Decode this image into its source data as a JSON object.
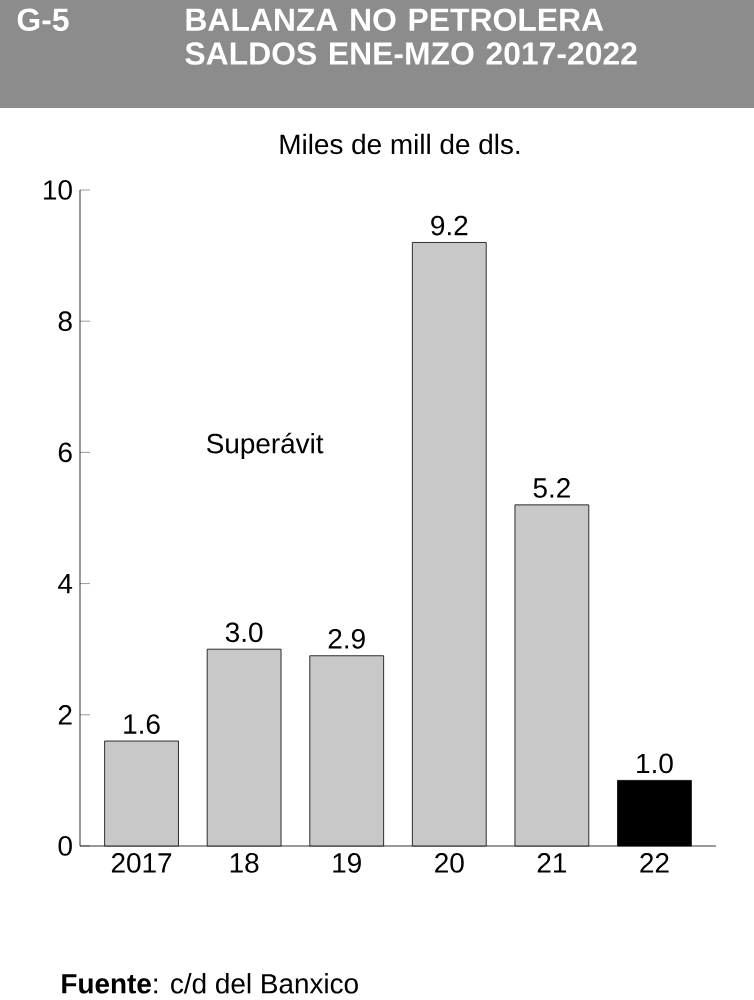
{
  "chart_data": {
    "type": "bar",
    "title": "BALANZA NO PETROLERA SALDOS ENE-MZO 2017-2022",
    "subtitle": "Miles de mill de dls.",
    "annotations": [
      "G-5",
      "Superávit",
      "**Fuente**: c/d del Banxico"
    ],
    "categories": [
      "2017",
      "18",
      "19",
      "20",
      "21",
      "22"
    ],
    "values": [
      1.6,
      3.0,
      2.9,
      9.2,
      5.2,
      1.0
    ],
    "colors": [
      "#c8c8c8",
      "#c8c8c8",
      "#c8c8c8",
      "#c8c8c8",
      "#c8c8c8",
      "#000000"
    ],
    "value_labels": [
      "1.6",
      "3.0",
      "2.9",
      "9.2",
      "5.2",
      "1.0"
    ],
    "ylim": [
      0,
      10
    ],
    "yticks": [
      0,
      2,
      4,
      6,
      8,
      10
    ],
    "grid": false
  }
}
